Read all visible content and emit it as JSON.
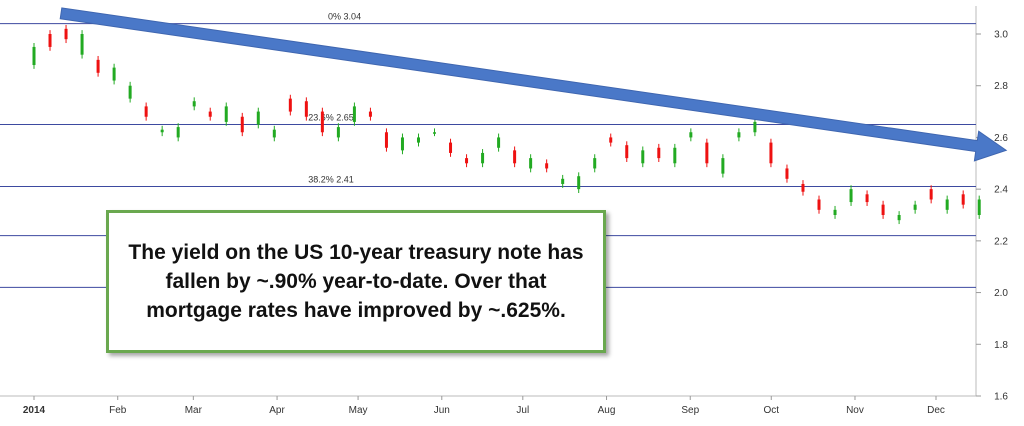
{
  "chart_data": {
    "type": "candlestick",
    "title": "",
    "xlabel": "",
    "ylabel": "",
    "ylim": [
      1.6,
      3.1
    ],
    "yticks": [
      3.0,
      2.8,
      2.6,
      2.4,
      2.2,
      2.0,
      1.8,
      1.6
    ],
    "ytick_labels": [
      "3.0",
      "2.8",
      "2.6",
      "2.4",
      "2.2",
      "2.0",
      "1.8",
      "1.6"
    ],
    "x_range_days": [
      -2,
      350
    ],
    "xticks": [
      {
        "label": "2014",
        "day": 0,
        "bold": true
      },
      {
        "label": "Feb",
        "day": 31
      },
      {
        "label": "Mar",
        "day": 59
      },
      {
        "label": "Apr",
        "day": 90
      },
      {
        "label": "May",
        "day": 120
      },
      {
        "label": "Jun",
        "day": 151
      },
      {
        "label": "Jul",
        "day": 181
      },
      {
        "label": "Aug",
        "day": 212
      },
      {
        "label": "Sep",
        "day": 243
      },
      {
        "label": "Oct",
        "day": 273
      },
      {
        "label": "Nov",
        "day": 304
      },
      {
        "label": "Dec",
        "day": 334
      }
    ],
    "fib_levels": [
      {
        "value": 3.04,
        "label": "0% 3.04",
        "label_day": 115
      },
      {
        "value": 2.65,
        "label": "23.6% 2.65",
        "label_day": 110
      },
      {
        "value": 2.41,
        "label": "38.2% 2.41",
        "label_day": 110
      },
      {
        "value": 2.22,
        "label": ""
      },
      {
        "value": 2.02,
        "label": ""
      }
    ],
    "trend_arrow": {
      "start": [
        10,
        3.08
      ],
      "end": [
        360,
        2.55
      ]
    },
    "series": [
      {
        "values": [
          [
            2.88,
            2.95
          ],
          [
            3.0,
            2.95
          ],
          [
            3.02,
            2.98
          ],
          [
            2.92,
            3.0
          ],
          [
            2.9,
            2.85
          ],
          [
            2.82,
            2.87
          ],
          [
            2.75,
            2.8
          ],
          [
            2.72,
            2.68
          ],
          [
            2.62,
            2.63
          ],
          [
            2.6,
            2.64
          ],
          [
            2.72,
            2.74
          ],
          [
            2.7,
            2.68
          ],
          [
            2.66,
            2.72
          ],
          [
            2.68,
            2.62
          ],
          [
            2.65,
            2.7
          ],
          [
            2.6,
            2.63
          ],
          [
            2.75,
            2.7
          ],
          [
            2.74,
            2.68
          ],
          [
            2.7,
            2.62
          ],
          [
            2.6,
            2.64
          ],
          [
            2.66,
            2.72
          ],
          [
            2.7,
            2.68
          ],
          [
            2.62,
            2.56
          ],
          [
            2.55,
            2.6
          ],
          [
            2.58,
            2.6
          ],
          [
            2.62,
            2.62
          ],
          [
            2.58,
            2.54
          ],
          [
            2.52,
            2.5
          ],
          [
            2.5,
            2.54
          ],
          [
            2.56,
            2.6
          ],
          [
            2.55,
            2.5
          ],
          [
            2.48,
            2.52
          ],
          [
            2.5,
            2.48
          ],
          [
            2.42,
            2.44
          ],
          [
            2.4,
            2.45
          ],
          [
            2.48,
            2.52
          ],
          [
            2.6,
            2.58
          ],
          [
            2.57,
            2.52
          ],
          [
            2.5,
            2.55
          ],
          [
            2.56,
            2.52
          ],
          [
            2.5,
            2.56
          ],
          [
            2.6,
            2.62
          ],
          [
            2.58,
            2.5
          ],
          [
            2.46,
            2.52
          ],
          [
            2.6,
            2.62
          ],
          [
            2.62,
            2.66
          ],
          [
            2.58,
            2.5
          ],
          [
            2.48,
            2.44
          ],
          [
            2.42,
            2.39
          ],
          [
            2.36,
            2.32
          ],
          [
            2.3,
            2.32
          ],
          [
            2.35,
            2.4
          ],
          [
            2.38,
            2.35
          ],
          [
            2.34,
            2.3
          ],
          [
            2.28,
            2.3
          ],
          [
            2.32,
            2.34
          ],
          [
            2.4,
            2.36
          ],
          [
            2.32,
            2.36
          ],
          [
            2.38,
            2.34
          ],
          [
            2.3,
            2.36
          ]
        ]
      }
    ]
  },
  "callout": {
    "text": "The yield on the US 10-year treasury note has fallen by ~.90% year-to-date.  Over that mortgage rates have improved by ~.625%."
  },
  "colors": {
    "up_candle": "#22aa22",
    "down_candle": "#ee1111",
    "fib_line": "#3d4aa0",
    "arrow": "#4a78c8",
    "callout_border": "#6aa84f"
  }
}
